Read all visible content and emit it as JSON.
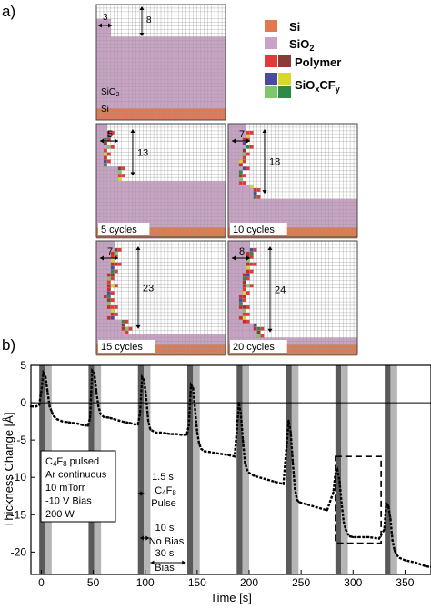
{
  "panel_a": {
    "label": "a)",
    "legend": [
      {
        "text": "Si",
        "colors": [
          "#e07a4e"
        ]
      },
      {
        "text": "SiO",
        "sub": "2",
        "colors": [
          "#c9a3c6"
        ]
      },
      {
        "text": "Polymer",
        "colors": [
          "#e23a3a",
          "#8b3a3a"
        ]
      },
      {
        "text": "SiO",
        "sub": "x",
        "text2": "CF",
        "sub2": "y",
        "colors": [
          "#4a4aa0",
          "#d8d82a",
          "#7cc86a",
          "#2f8a4a"
        ]
      }
    ],
    "initial": {
      "sio2_label": "SiO",
      "sio2_sub": "2",
      "si_label": "Si",
      "width_label": "3",
      "depth_label": "8"
    },
    "panels": [
      {
        "caption": "5 cycles",
        "width_label": "5",
        "depth_label": "13"
      },
      {
        "caption": "10 cycles",
        "width_label": "7",
        "depth_label": "18"
      },
      {
        "caption": "15 cycles",
        "width_label": "7",
        "depth_label": "23"
      },
      {
        "caption": "20 cycles",
        "width_label": "8",
        "depth_label": "24"
      }
    ]
  },
  "panel_b": {
    "label": "b)"
  },
  "chart_data": {
    "type": "line",
    "xlabel": "Time [s]",
    "ylabel": "Thickness Change [Å]",
    "xlim": [
      -10,
      375
    ],
    "ylim": [
      -23,
      5
    ],
    "xticks": [
      0,
      50,
      100,
      150,
      200,
      250,
      300,
      350
    ],
    "yticks": [
      5,
      0,
      -5,
      -10,
      -15,
      -20
    ],
    "pulse_starts": [
      0,
      47.5,
      95,
      142.5,
      190,
      237.5,
      285,
      332.5
    ],
    "pulse_width_s": 1.5,
    "no_bias_width_s": 10,
    "bias_width_s": 30,
    "series": [
      {
        "x": [
          -10,
          -5,
          -2,
          0,
          2,
          4,
          6,
          8,
          10,
          12,
          15,
          20,
          25,
          30,
          35,
          40,
          45,
          47,
          49,
          51,
          53,
          55,
          57,
          60,
          65,
          70,
          75,
          80,
          85,
          90,
          93,
          95,
          97,
          99,
          101,
          103,
          105,
          110,
          115,
          120,
          125,
          130,
          135,
          140,
          142,
          144,
          146,
          148,
          150,
          152,
          154,
          157,
          162,
          170,
          180,
          186,
          188,
          190,
          192,
          194,
          196,
          198,
          200,
          205,
          215,
          225,
          233,
          236,
          238,
          240,
          242,
          244,
          246,
          248,
          250,
          255,
          265,
          275,
          281,
          283,
          285,
          287,
          289,
          291,
          293,
          295,
          297,
          300,
          305,
          315,
          325,
          330,
          332,
          334,
          336,
          338,
          340,
          342,
          345,
          350,
          360,
          370,
          375
        ],
        "y": [
          -0.5,
          -0.5,
          -0.3,
          1.5,
          4.0,
          3.5,
          1.5,
          -0.5,
          -1.2,
          -1.8,
          -2.2,
          -2.5,
          -2.6,
          -2.7,
          -2.8,
          -3.0,
          -3.1,
          -2.0,
          4.3,
          4.0,
          1.5,
          -0.5,
          -1.5,
          -1.9,
          -2.0,
          -2.2,
          -2.4,
          -2.6,
          -2.7,
          -2.9,
          -2.9,
          -1.5,
          3.4,
          3.0,
          0.5,
          -2.5,
          -3.6,
          -4.0,
          -4.0,
          -4.1,
          -4.2,
          -4.2,
          -4.3,
          -4.3,
          -3.0,
          2.4,
          2.0,
          -1.0,
          -4.0,
          -5.5,
          -6.2,
          -6.5,
          -6.6,
          -6.8,
          -7.0,
          -7.2,
          -4.0,
          0.0,
          -1.5,
          -5.0,
          -8.0,
          -9.0,
          -9.4,
          -9.8,
          -10.2,
          -10.6,
          -10.9,
          -6.0,
          -2.4,
          -4.0,
          -8.0,
          -11.5,
          -13.0,
          -13.3,
          -13.4,
          -13.6,
          -14.0,
          -14.4,
          -12.0,
          -9.5,
          -9.0,
          -10.5,
          -13.5,
          -16.0,
          -17.0,
          -17.6,
          -17.9,
          -18.0,
          -18.0,
          -18.0,
          -18.2,
          -17.0,
          -13.5,
          -13.8,
          -15.5,
          -18.5,
          -19.8,
          -20.4,
          -20.8,
          -21.1,
          -21.4,
          -21.9,
          -22.0
        ]
      }
    ],
    "annotations": {
      "process_box": [
        "C4F8 pulsed",
        "Ar continuous",
        "10 mTorr",
        "-10 V  Bias",
        "200 W"
      ],
      "pulse_duration": "1.5 s",
      "pulse_gas": "C4F8",
      "pulse_word": "Pulse",
      "no_bias_duration": "10 s",
      "no_bias_word": "No Bias",
      "bias_duration": "30 s",
      "bias_word": "Bias"
    }
  }
}
